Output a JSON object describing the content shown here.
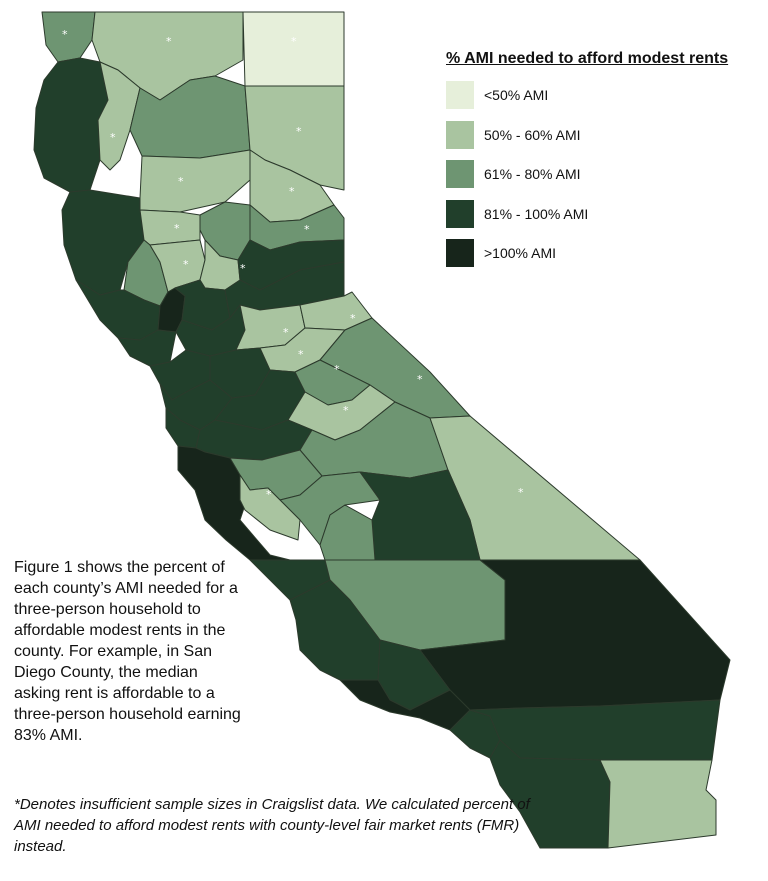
{
  "legend": {
    "title": "% AMI needed to afford modest rents",
    "items": [
      {
        "label": "<50% AMI",
        "color": "#e6efda"
      },
      {
        "label": "50% - 60% AMI",
        "color": "#a9c4a0"
      },
      {
        "label": "61% - 80% AMI",
        "color": "#6e9572"
      },
      {
        "label": "81% - 100% AMI",
        "color": "#213f2b"
      },
      {
        "label": ">100% AMI",
        "color": "#17251b"
      }
    ]
  },
  "map": {
    "insufficient_marker": "*",
    "outline_color": "#2c3a2c"
  },
  "caption": "Figure 1 shows the percent of each county’s AMI needed for a three-person household to affordable modest rents in the county. For example, in San Diego County, the median asking rent is affordable to a three-person household earning 83% AMI.",
  "footnote": "*Denotes insufficient sample sizes in Craigslist data. We calculated percent of AMI needed to afford modest rents with county-level fair market rents (FMR) instead."
}
